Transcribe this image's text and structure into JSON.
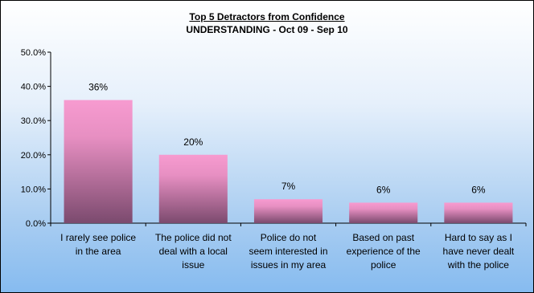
{
  "chart_data": {
    "type": "bar",
    "title": "Top 5 Detractors from Confidence",
    "subtitle": "UNDERSTANDING - Oct 09 - Sep 10",
    "categories": [
      [
        "I rarely see police",
        "in the area"
      ],
      [
        "The police did not",
        "deal with a local",
        "issue"
      ],
      [
        "Police do not",
        "seem interested in",
        "issues in my area"
      ],
      [
        "Based on past",
        "experience of the",
        "police"
      ],
      [
        "Hard to say as I",
        "have never dealt",
        "with the police"
      ]
    ],
    "values": [
      36,
      20,
      7,
      6,
      6
    ],
    "data_labels": [
      "36%",
      "20%",
      "7%",
      "6%",
      "6%"
    ],
    "ylim": [
      0,
      50
    ],
    "yticks": [
      0,
      10,
      20,
      30,
      40,
      50
    ],
    "ytick_labels": [
      "0.0%",
      "10.0%",
      "20.0%",
      "30.0%",
      "40.0%",
      "50.0%"
    ],
    "xlabel": "",
    "ylabel": "",
    "grid": false,
    "legend": "none",
    "colors": {
      "bar_top": "#f79bd0",
      "bar_bottom": "#7b4a6e",
      "background_top": "#ffffff",
      "background_bottom": "#86bbf0"
    }
  }
}
